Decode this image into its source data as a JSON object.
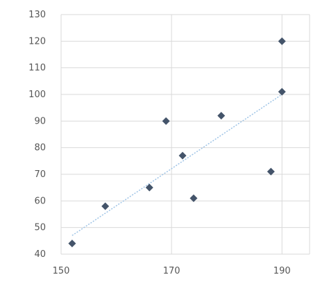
{
  "chart_data": {
    "type": "scatter",
    "title": "",
    "xlabel": "",
    "ylabel": "",
    "xlim": [
      150,
      195
    ],
    "ylim": [
      40,
      130
    ],
    "x_ticks": [
      150,
      170,
      190
    ],
    "y_ticks": [
      40,
      50,
      60,
      70,
      80,
      90,
      100,
      110,
      120,
      130
    ],
    "grid": true,
    "legend": "none",
    "points": [
      {
        "x": 152,
        "y": 44
      },
      {
        "x": 158,
        "y": 58
      },
      {
        "x": 166,
        "y": 65
      },
      {
        "x": 169,
        "y": 90
      },
      {
        "x": 172,
        "y": 77
      },
      {
        "x": 174,
        "y": 61
      },
      {
        "x": 179,
        "y": 92
      },
      {
        "x": 188,
        "y": 71
      },
      {
        "x": 190,
        "y": 101
      },
      {
        "x": 190,
        "y": 120
      }
    ],
    "trendline": {
      "type": "linear",
      "x": [
        152,
        190
      ],
      "y": [
        47,
        100
      ]
    },
    "colors": {
      "marker": "#44546a",
      "trendline": "#9dc3e6",
      "grid": "#d9d9d9",
      "tick_label": "#555555"
    }
  }
}
